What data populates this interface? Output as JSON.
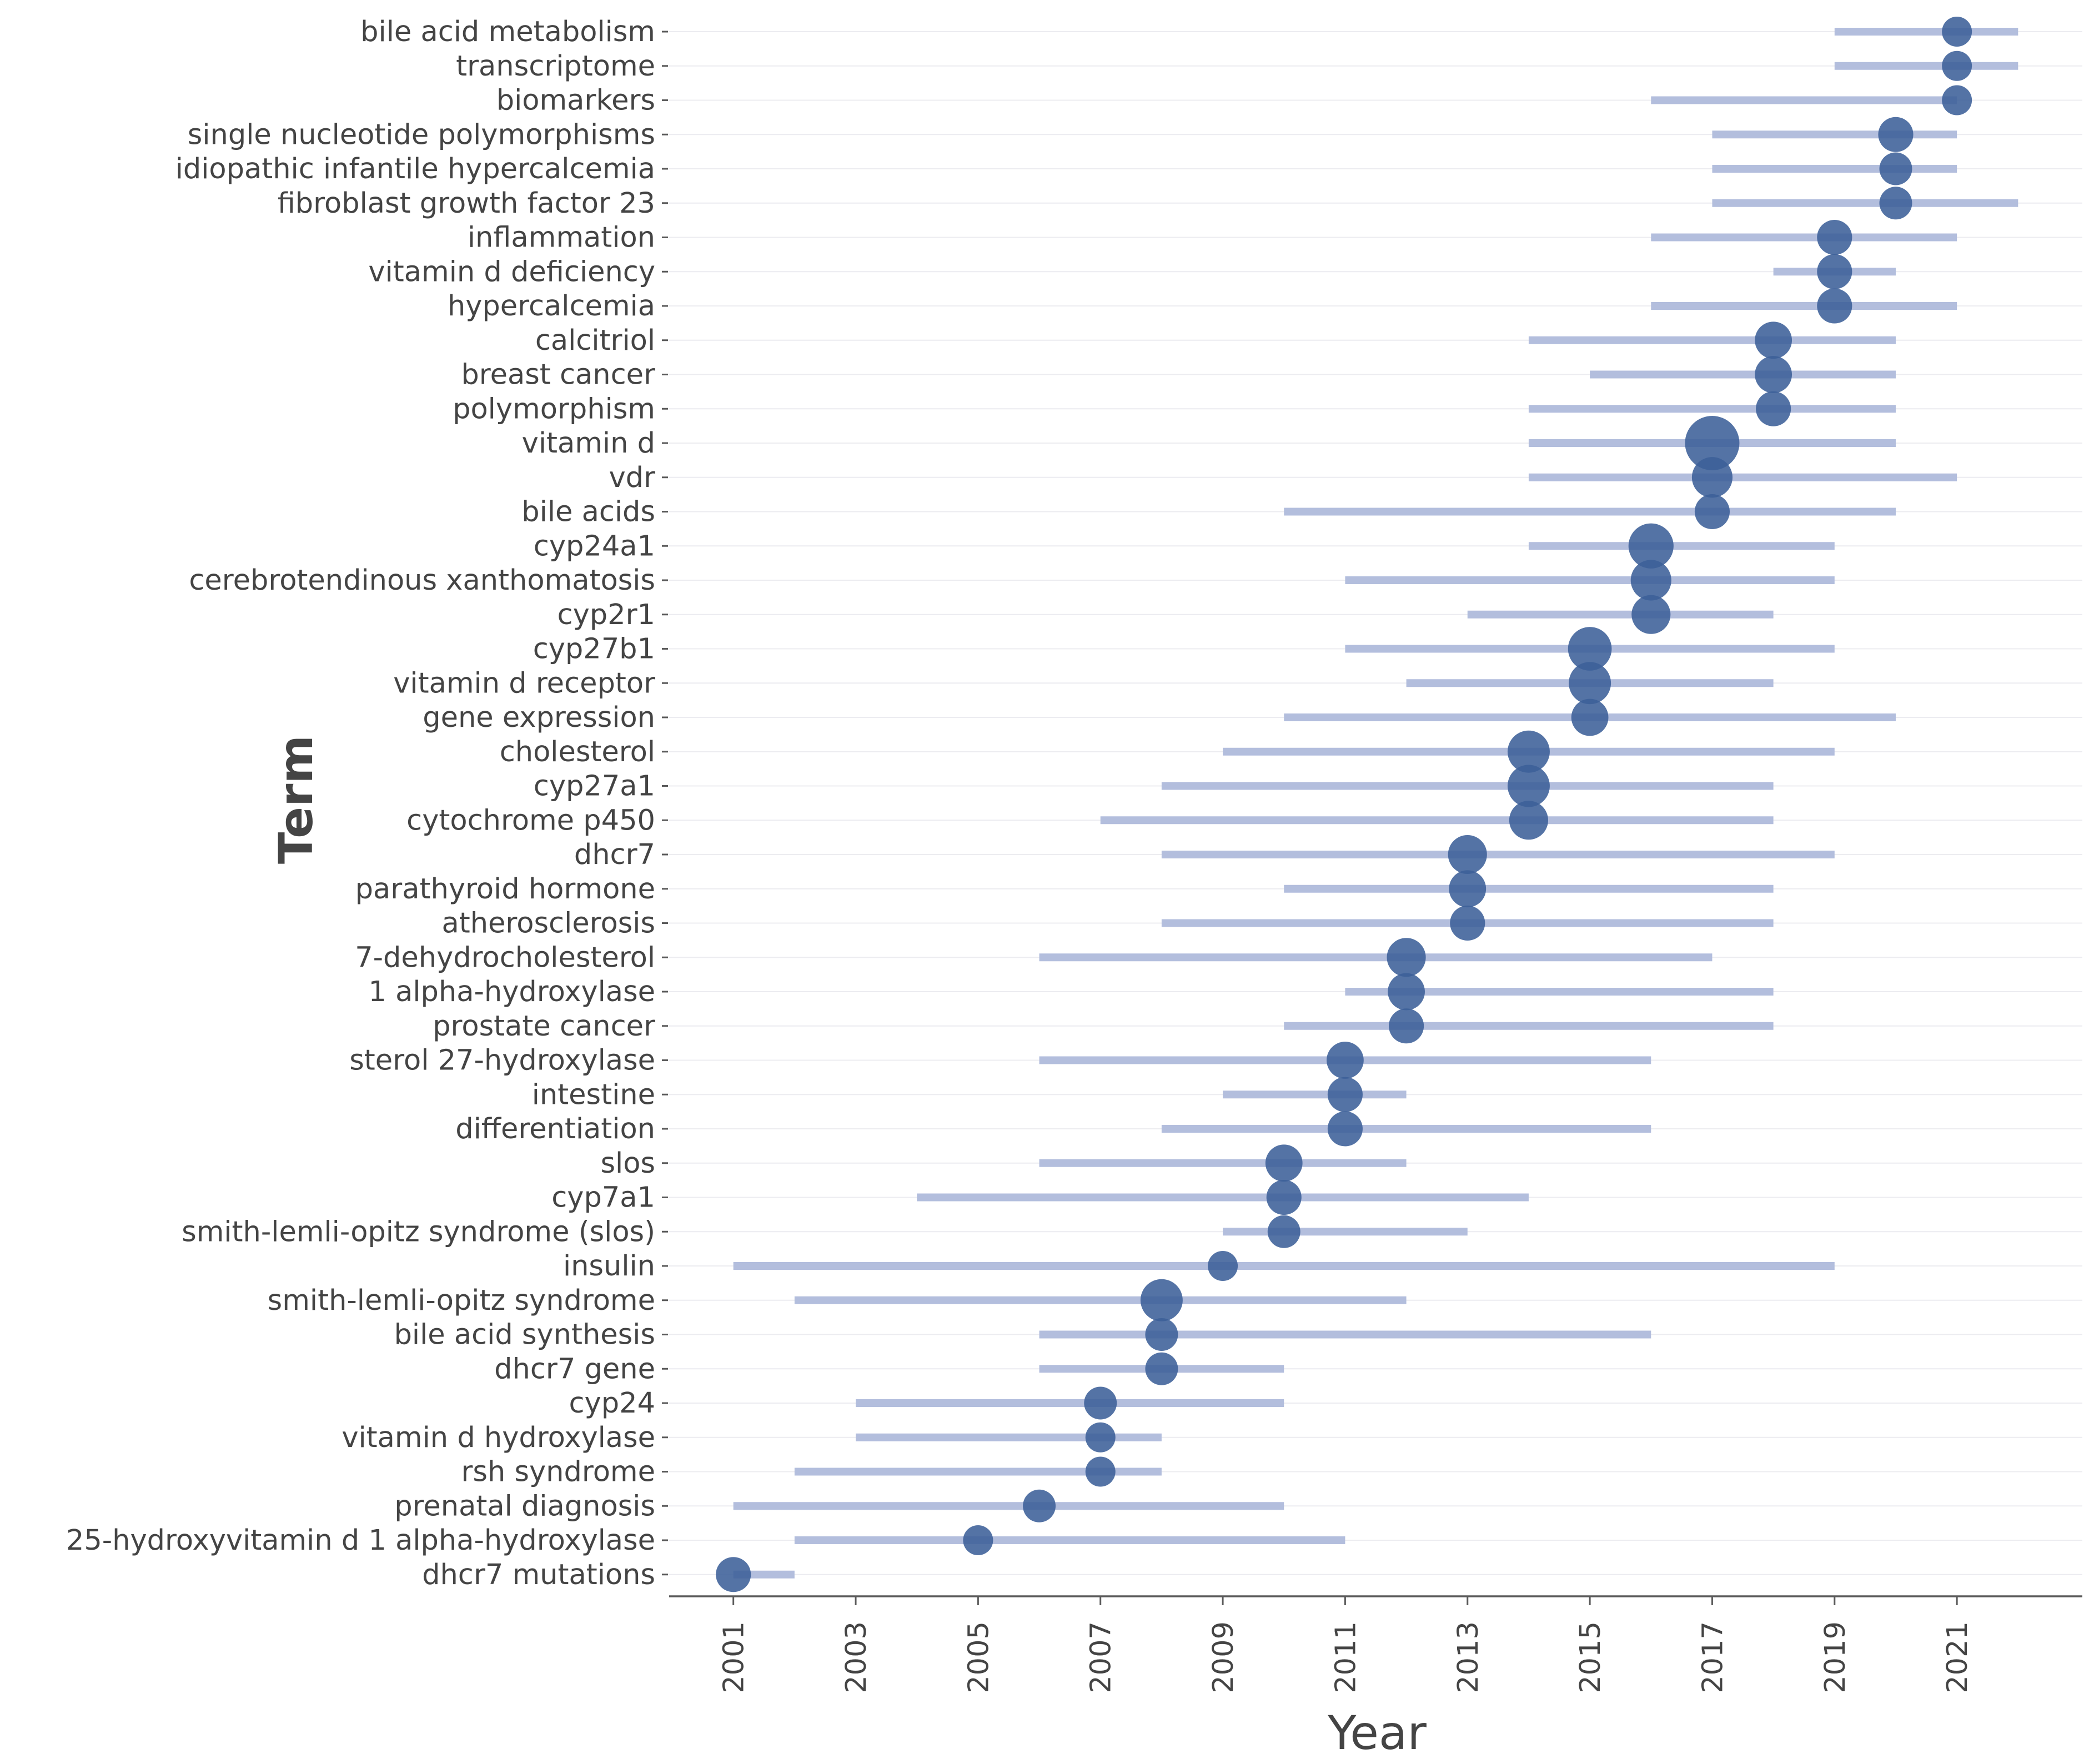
{
  "chart_data": {
    "type": "scatter",
    "subtype": "trend-topics-range",
    "title": "",
    "xlabel": "Year",
    "ylabel": "Term",
    "xlim": [
      1999.95,
      2023.05
    ],
    "x_ticks": [
      "2001",
      "2003",
      "2005",
      "2007",
      "2009",
      "2011",
      "2013",
      "2015",
      "2017",
      "2019",
      "2021"
    ],
    "grid": true,
    "legend": "none",
    "colors": {
      "range": "#b3bedd",
      "point": "#3c6098",
      "axis": "#5a5a5a",
      "grid": "#ececf0",
      "text": "#444444"
    },
    "terms": [
      {
        "term": "bile acid metabolism",
        "start": 2019,
        "end": 2022,
        "peak": 2021,
        "size": 1
      },
      {
        "term": "transcriptome",
        "start": 2019,
        "end": 2022,
        "peak": 2021,
        "size": 1
      },
      {
        "term": "biomarkers",
        "start": 2016,
        "end": 2021,
        "peak": 2021,
        "size": 1
      },
      {
        "term": "single nucleotide polymorphisms",
        "start": 2017,
        "end": 2021,
        "peak": 2020,
        "size": 2
      },
      {
        "term": "idiopathic infantile hypercalcemia",
        "start": 2017,
        "end": 2021,
        "peak": 2020,
        "size": 1.5
      },
      {
        "term": "fibroblast growth factor 23",
        "start": 2017,
        "end": 2022,
        "peak": 2020,
        "size": 1.5
      },
      {
        "term": "inflammation",
        "start": 2016,
        "end": 2021,
        "peak": 2019,
        "size": 2
      },
      {
        "term": "vitamin d deficiency",
        "start": 2018,
        "end": 2020,
        "peak": 2019,
        "size": 2
      },
      {
        "term": "hypercalcemia",
        "start": 2016,
        "end": 2021,
        "peak": 2019,
        "size": 2
      },
      {
        "term": "calcitriol",
        "start": 2014,
        "end": 2020,
        "peak": 2018,
        "size": 2.5
      },
      {
        "term": "breast cancer",
        "start": 2015,
        "end": 2020,
        "peak": 2018,
        "size": 2.5
      },
      {
        "term": "polymorphism",
        "start": 2014,
        "end": 2020,
        "peak": 2018,
        "size": 2
      },
      {
        "term": "vitamin d",
        "start": 2014,
        "end": 2020,
        "peak": 2017,
        "size": 9
      },
      {
        "term": "vdr",
        "start": 2014,
        "end": 2021,
        "peak": 2017,
        "size": 3.5
      },
      {
        "term": "bile acids",
        "start": 2010,
        "end": 2020,
        "peak": 2017,
        "size": 2
      },
      {
        "term": "cyp24a1",
        "start": 2014,
        "end": 2019,
        "peak": 2016,
        "size": 5
      },
      {
        "term": "cerebrotendinous xanthomatosis",
        "start": 2011,
        "end": 2019,
        "peak": 2016,
        "size": 3.5
      },
      {
        "term": "cyp2r1",
        "start": 2013,
        "end": 2018,
        "peak": 2016,
        "size": 3
      },
      {
        "term": "cyp27b1",
        "start": 2011,
        "end": 2019,
        "peak": 2015,
        "size": 4.5
      },
      {
        "term": "vitamin d receptor",
        "start": 2012,
        "end": 2018,
        "peak": 2015,
        "size": 4
      },
      {
        "term": "gene expression",
        "start": 2010,
        "end": 2020,
        "peak": 2015,
        "size": 2.5
      },
      {
        "term": "cholesterol",
        "start": 2009,
        "end": 2019,
        "peak": 2014,
        "size": 4
      },
      {
        "term": "cyp27a1",
        "start": 2008,
        "end": 2018,
        "peak": 2014,
        "size": 4
      },
      {
        "term": "cytochrome p450",
        "start": 2007,
        "end": 2018,
        "peak": 2014,
        "size": 3
      },
      {
        "term": "dhcr7",
        "start": 2008,
        "end": 2019,
        "peak": 2013,
        "size": 3
      },
      {
        "term": "parathyroid hormone",
        "start": 2010,
        "end": 2018,
        "peak": 2013,
        "size": 2.5
      },
      {
        "term": "atherosclerosis",
        "start": 2008,
        "end": 2018,
        "peak": 2013,
        "size": 2
      },
      {
        "term": "7-dehydrocholesterol",
        "start": 2006,
        "end": 2017,
        "peak": 2012,
        "size": 3
      },
      {
        "term": "1 alpha-hydroxylase",
        "start": 2011,
        "end": 2018,
        "peak": 2012,
        "size": 2.5
      },
      {
        "term": "prostate cancer",
        "start": 2010,
        "end": 2018,
        "peak": 2012,
        "size": 2
      },
      {
        "term": "sterol 27-hydroxylase",
        "start": 2006,
        "end": 2016,
        "peak": 2011,
        "size": 2.5
      },
      {
        "term": "intestine",
        "start": 2009,
        "end": 2012,
        "peak": 2011,
        "size": 2
      },
      {
        "term": "differentiation",
        "start": 2008,
        "end": 2016,
        "peak": 2011,
        "size": 2
      },
      {
        "term": "slos",
        "start": 2006,
        "end": 2012,
        "peak": 2010,
        "size": 2.5
      },
      {
        "term": "cyp7a1",
        "start": 2004,
        "end": 2014,
        "peak": 2010,
        "size": 2
      },
      {
        "term": "smith-lemli-opitz syndrome (slos)",
        "start": 2009,
        "end": 2013,
        "peak": 2010,
        "size": 1.5
      },
      {
        "term": "insulin",
        "start": 2001,
        "end": 2019,
        "peak": 2009,
        "size": 1
      },
      {
        "term": "smith-lemli-opitz syndrome",
        "start": 2002,
        "end": 2012,
        "peak": 2008,
        "size": 4
      },
      {
        "term": "bile acid synthesis",
        "start": 2006,
        "end": 2016,
        "peak": 2008,
        "size": 1.5
      },
      {
        "term": "dhcr7 gene",
        "start": 2006,
        "end": 2010,
        "peak": 2008,
        "size": 1.5
      },
      {
        "term": "cyp24",
        "start": 2003,
        "end": 2010,
        "peak": 2007,
        "size": 1.5
      },
      {
        "term": "vitamin d hydroxylase",
        "start": 2003,
        "end": 2008,
        "peak": 2007,
        "size": 1
      },
      {
        "term": "rsh syndrome",
        "start": 2002,
        "end": 2008,
        "peak": 2007,
        "size": 1
      },
      {
        "term": "prenatal diagnosis",
        "start": 2001,
        "end": 2010,
        "peak": 2006,
        "size": 1.5
      },
      {
        "term": "25-hydroxyvitamin d 1 alpha-hydroxylase",
        "start": 2002,
        "end": 2011,
        "peak": 2005,
        "size": 1
      },
      {
        "term": "dhcr7 mutations",
        "start": 2001,
        "end": 2002,
        "peak": 2001,
        "size": 2
      }
    ]
  }
}
